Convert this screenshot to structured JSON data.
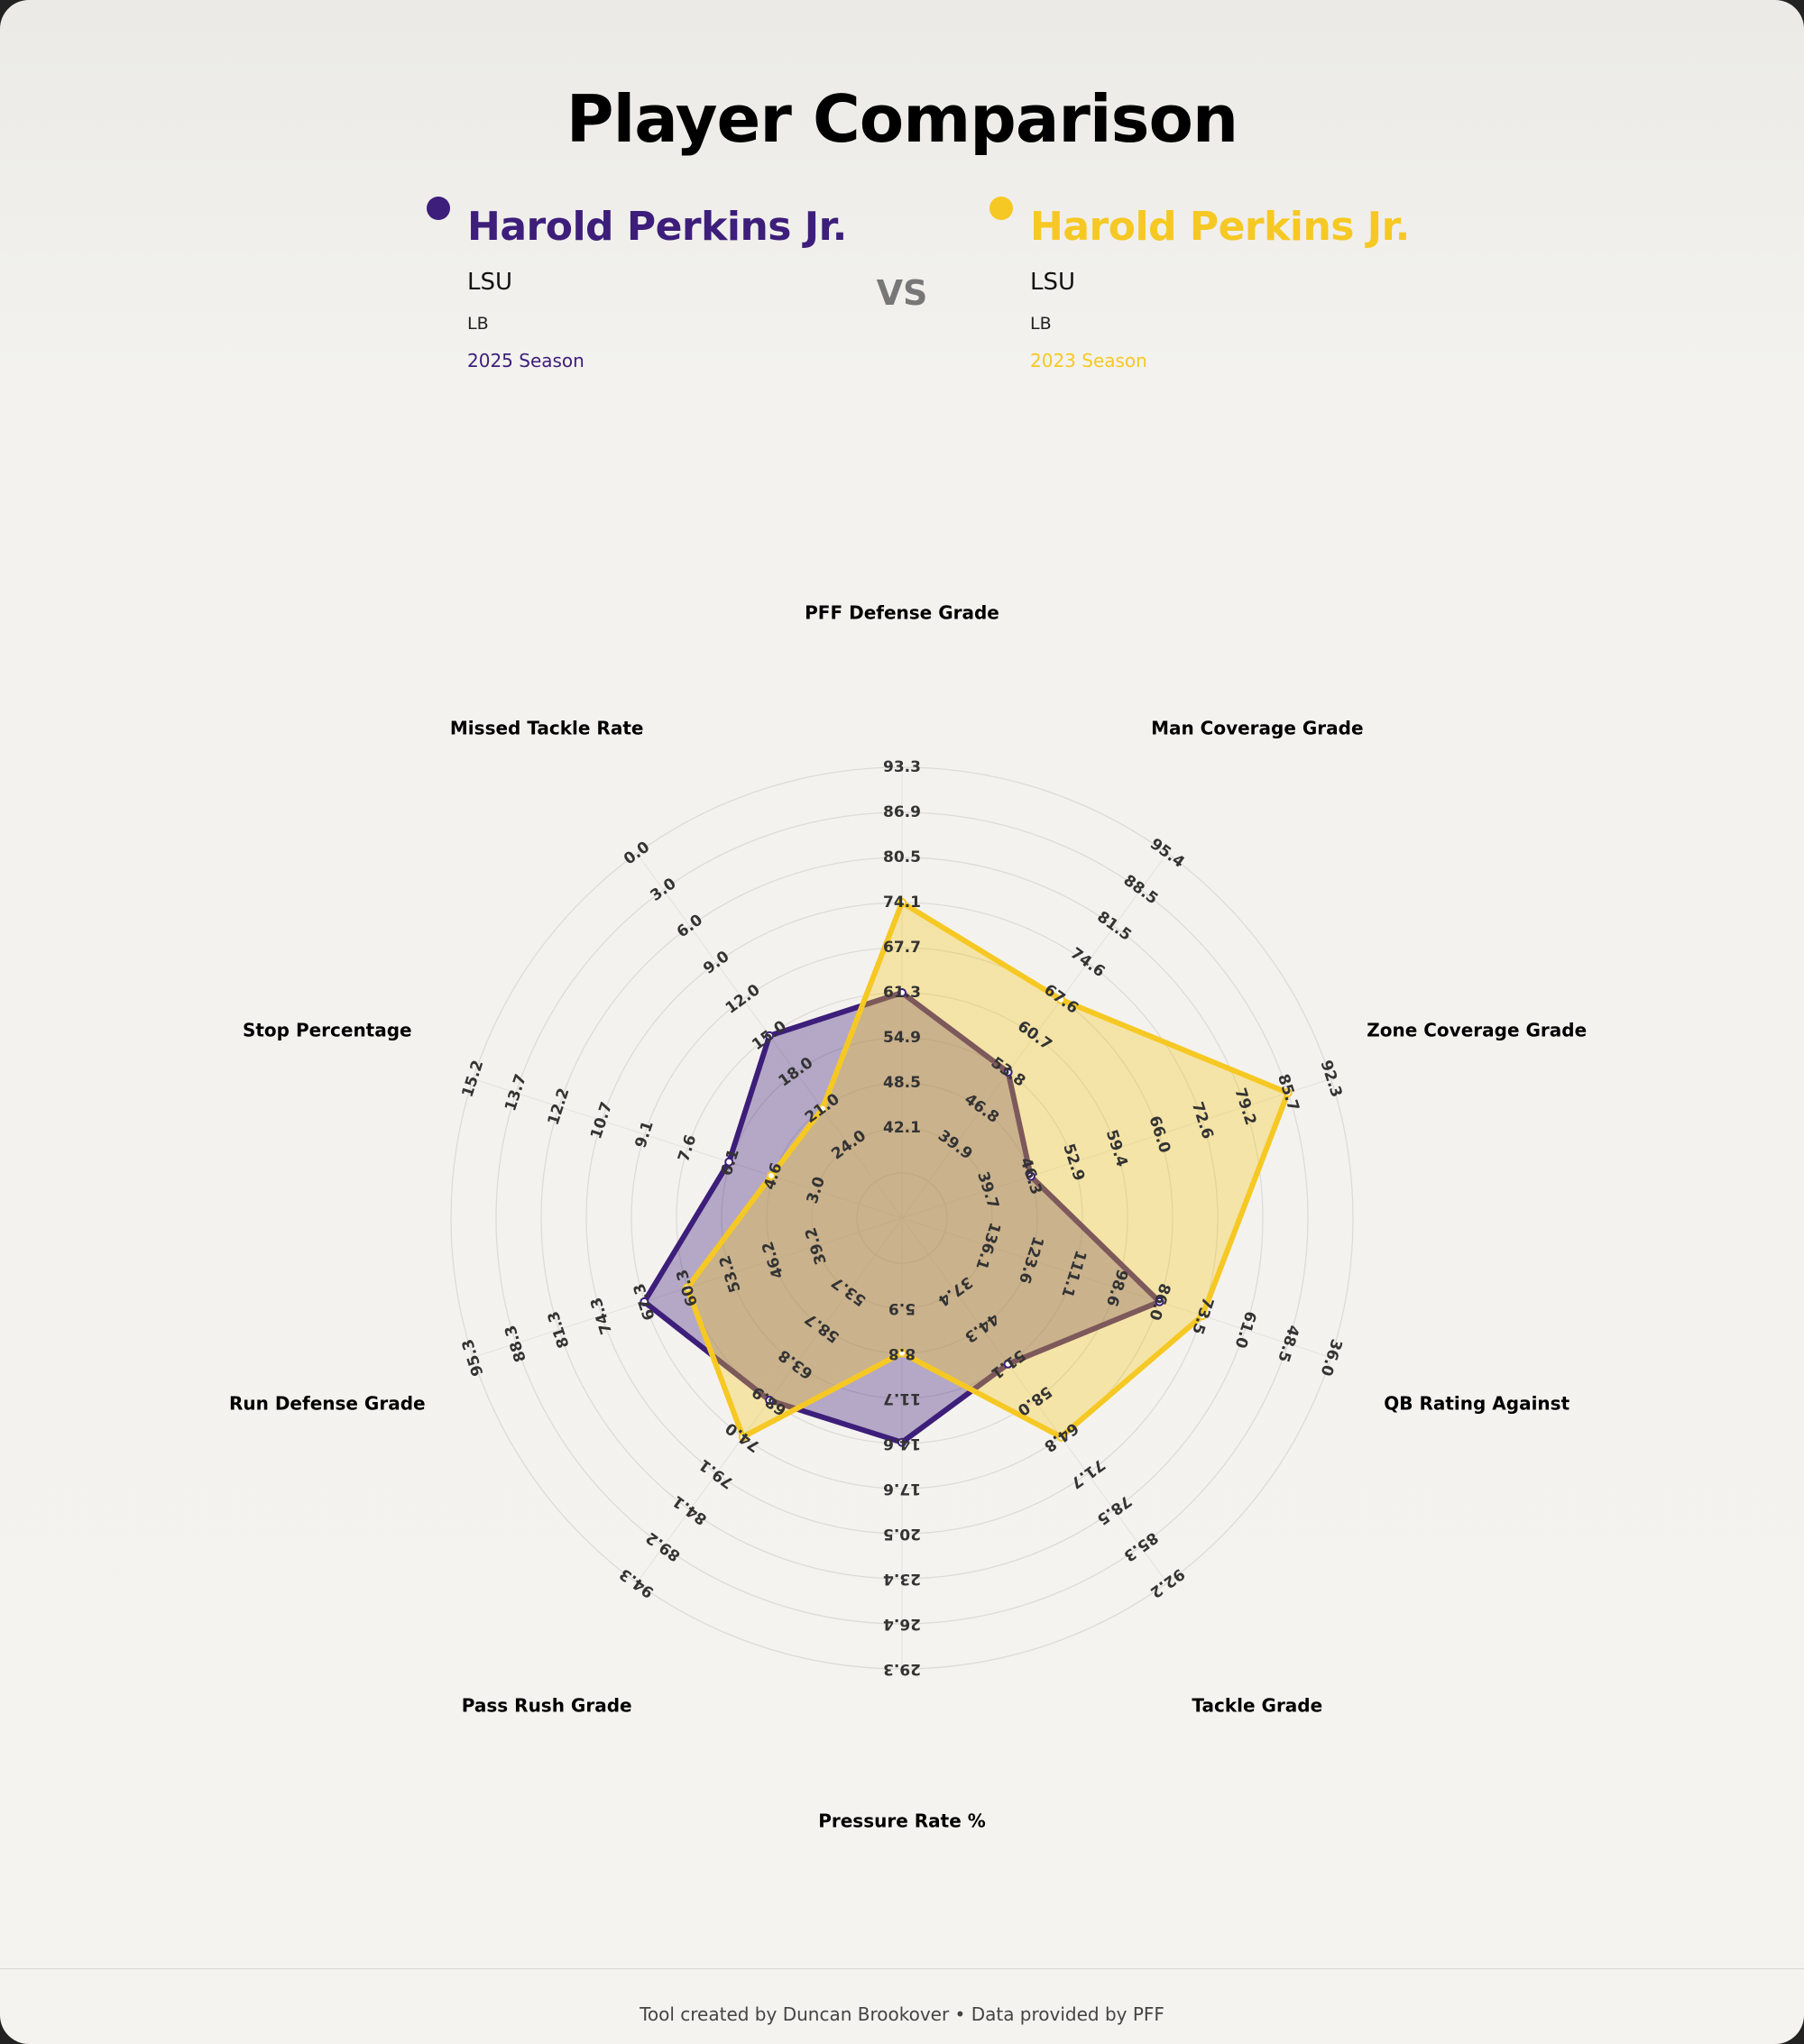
{
  "page": {
    "title": "Player Comparison",
    "vs": "VS"
  },
  "players": [
    {
      "name": "Harold Perkins Jr.",
      "team": "LSU",
      "position": "LB",
      "season": "2025 Season",
      "color": "#3d1e7a"
    },
    {
      "name": "Harold Perkins Jr.",
      "team": "LSU",
      "position": "LB",
      "season": "2023 Season",
      "color": "#f6c823"
    }
  ],
  "footer": {
    "text": "Tool created by Duncan Brookover • Data provided by PFF"
  },
  "chart_data": {
    "type": "radar",
    "axes": [
      {
        "label": "PFF Defense Grade",
        "ticks": [
          "42.1",
          "48.5",
          "54.9",
          "61.3",
          "67.7",
          "74.1",
          "80.5",
          "86.9",
          "93.3"
        ]
      },
      {
        "label": "Man Coverage Grade",
        "ticks": [
          "39.9",
          "46.8",
          "53.8",
          "60.7",
          "67.6",
          "74.6",
          "81.5",
          "88.5",
          "95.4"
        ]
      },
      {
        "label": "Zone Coverage Grade",
        "ticks": [
          "39.7",
          "46.3",
          "52.9",
          "59.4",
          "66.0",
          "72.6",
          "79.2",
          "85.7",
          "92.3"
        ]
      },
      {
        "label": "QB Rating Against",
        "ticks": [
          "136.1",
          "123.6",
          "111.1",
          "98.6",
          "86.0",
          "73.5",
          "61.0",
          "48.5",
          "36.0"
        ]
      },
      {
        "label": "Tackle Grade",
        "ticks": [
          "37.4",
          "44.3",
          "51.1",
          "58.0",
          "64.8",
          "71.7",
          "78.5",
          "85.3",
          "92.2"
        ]
      },
      {
        "label": "Pressure Rate %",
        "ticks": [
          "5.9",
          "8.8",
          "11.7",
          "14.6",
          "17.6",
          "20.5",
          "23.4",
          "26.4",
          "29.3"
        ]
      },
      {
        "label": "Pass Rush Grade",
        "ticks": [
          "53.7",
          "58.7",
          "63.8",
          "68.9",
          "74.0",
          "79.1",
          "84.1",
          "89.2",
          "94.3"
        ]
      },
      {
        "label": "Run Defense Grade",
        "ticks": [
          "39.2",
          "46.2",
          "53.2",
          "60.3",
          "67.3",
          "74.3",
          "81.3",
          "88.3",
          "95.3"
        ]
      },
      {
        "label": "Stop Percentage",
        "ticks": [
          "3.0",
          "4.6",
          "6.1",
          "7.6",
          "9.1",
          "10.7",
          "12.2",
          "13.7",
          "15.2"
        ]
      },
      {
        "label": "Missed Tackle Rate",
        "ticks": [
          "24.0",
          "21.0",
          "18.0",
          "15.0",
          "12.0",
          "9.0",
          "6.0",
          "3.0",
          "0.0"
        ]
      }
    ],
    "series": [
      {
        "name": "Harold Perkins Jr. (2025 Season)",
        "color": "#3d1e7a",
        "values": [
          61.3,
          53.8,
          46.3,
          86.0,
          51.1,
          14.6,
          68.9,
          67.3,
          6.1,
          15.0
        ]
      },
      {
        "name": "Harold Perkins Jr. (2023 Season)",
        "color": "#f6c823",
        "values": [
          74.1,
          67.6,
          85.7,
          73.5,
          64.8,
          8.8,
          74.0,
          60.3,
          4.6,
          21.0
        ]
      }
    ],
    "rings": 9,
    "grid": true
  }
}
